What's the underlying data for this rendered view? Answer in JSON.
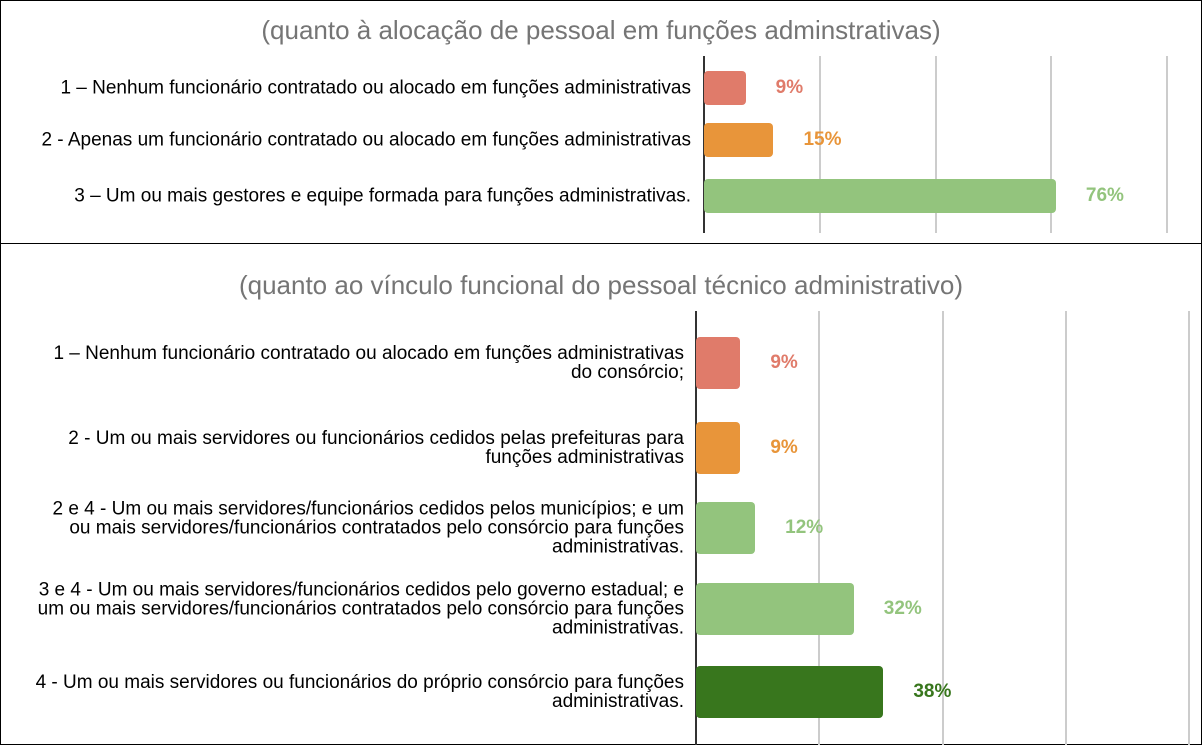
{
  "chart_data": [
    {
      "type": "bar",
      "orientation": "horizontal",
      "title": "(quanto à alocação de pessoal em funções adminstrativas)",
      "categories": [
        "1 – Nenhum funcionário contratado ou alocado em funções administrativas",
        "2 - Apenas um funcionário contratado ou alocado em funções administrativas",
        "3 – Um ou mais gestores e equipe formada para funções administrativas."
      ],
      "values": [
        9,
        15,
        76
      ],
      "value_labels": [
        "9%",
        "15%",
        "76%"
      ],
      "colors": [
        "#e07b6a",
        "#e8953a",
        "#93c47d"
      ],
      "xlim": [
        0,
        100
      ],
      "xticks": [
        0,
        25,
        50,
        75,
        100
      ],
      "grid": true
    },
    {
      "type": "bar",
      "orientation": "horizontal",
      "title": "(quanto ao vínculo funcional do pessoal técnico administrativo)",
      "categories": [
        "1 – Nenhum funcionário contratado ou alocado em funções administrativas do consórcio;",
        "2 - Um ou mais servidores ou funcionários cedidos pelas prefeituras para funções administrativas",
        "2 e 4 - Um ou mais servidores/funcionários cedidos pelos municípios; e um ou mais servidores/funcionários contratados pelo consórcio para funções administrativas.",
        "3 e 4 - Um ou mais servidores/funcionários cedidos pelo governo estadual; e um ou mais servidores/funcionários contratados pelo consórcio para funções administrativas.",
        "4 - Um ou mais servidores ou funcionários do próprio consórcio para funções administrativas."
      ],
      "values": [
        9,
        9,
        12,
        32,
        38
      ],
      "value_labels": [
        "9%",
        "9%",
        "12%",
        "32%",
        "38%"
      ],
      "colors": [
        "#e07b6a",
        "#e8953a",
        "#93c47d",
        "#93c47d",
        "#38761d"
      ],
      "xlim": [
        0,
        100
      ],
      "xticks": [
        0,
        25,
        50,
        75,
        100
      ],
      "grid": true
    }
  ]
}
